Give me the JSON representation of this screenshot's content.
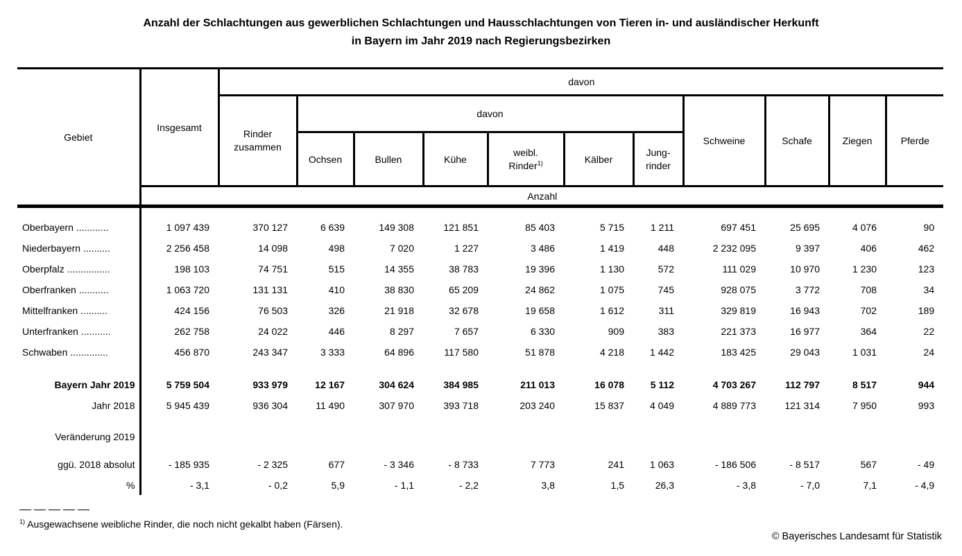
{
  "title": {
    "line1": "Anzahl der Schlachtungen aus gewerblichen Schlachtungen und Hausschlachtungen von Tieren in- und ausländischer Herkunft",
    "line2": "in Bayern im Jahr 2019 nach Regierungsbezirken"
  },
  "table": {
    "header": {
      "gebiet": "Gebiet",
      "insgesamt": "Insgesamt",
      "davon1": "davon",
      "davon2": "davon",
      "rinder1": "Rinder",
      "rinder2": "zusammen",
      "ochsen": "Ochsen",
      "bullen": "Bullen",
      "kuehe": "Kühe",
      "weibl1": "weibl.",
      "weibl2": "Rinder",
      "weibl_sup": "1)",
      "kaelber": "Kälber",
      "jung1": "Jung-",
      "jung2": "rinder",
      "schweine": "Schweine",
      "schafe": "Schafe",
      "ziegen": "Ziegen",
      "pferde": "Pferde",
      "anzahl": "Anzahl"
    },
    "rows": [
      {
        "cls": "first",
        "label": "Oberbayern ............",
        "values": [
          "1 097 439",
          "370 127",
          "6 639",
          "149 308",
          "121 851",
          "85 403",
          "5 715",
          "1 211",
          "697 451",
          "25 695",
          "4 076",
          "90"
        ]
      },
      {
        "cls": "",
        "label": "Niederbayern ..........",
        "values": [
          "2 256 458",
          "14 098",
          "498",
          "7 020",
          "1 227",
          "3 486",
          "1 419",
          "448",
          "2 232 095",
          "9 397",
          "406",
          "462"
        ]
      },
      {
        "cls": "",
        "label": "Oberpfalz ................",
        "values": [
          "198 103",
          "74 751",
          "515",
          "14 355",
          "38 783",
          "19 396",
          "1 130",
          "572",
          "111 029",
          "10 970",
          "1 230",
          "123"
        ]
      },
      {
        "cls": "",
        "label": "Oberfranken ...........",
        "values": [
          "1 063 720",
          "131 131",
          "410",
          "38 830",
          "65 209",
          "24 862",
          "1 075",
          "745",
          "928 075",
          "3 772",
          "708",
          "34"
        ]
      },
      {
        "cls": "",
        "label": "Mittelfranken ..........",
        "values": [
          "424 156",
          "76 503",
          "326",
          "21 918",
          "32 678",
          "19 658",
          "1 612",
          "311",
          "329 819",
          "16 943",
          "702",
          "189"
        ]
      },
      {
        "cls": "",
        "label": "Unterfranken ...........",
        "values": [
          "262 758",
          "24 022",
          "446",
          "8 297",
          "7 657",
          "6 330",
          "909",
          "383",
          "221 373",
          "16 977",
          "364",
          "22"
        ]
      },
      {
        "cls": "",
        "label": "Schwaben ..............",
        "values": [
          "456 870",
          "243 347",
          "3 333",
          "64 896",
          "117 580",
          "51 878",
          "4 218",
          "1 442",
          "183 425",
          "29 043",
          "1 031",
          "24"
        ]
      },
      {
        "cls": "total",
        "label": "Bayern Jahr 2019",
        "label_align": "right",
        "values": [
          "5 759 504",
          "933 979",
          "12 167",
          "304 624",
          "384 985",
          "211 013",
          "16 078",
          "5 112",
          "4 703 267",
          "112 797",
          "8 517",
          "944"
        ]
      },
      {
        "cls": "",
        "label": "Jahr 2018",
        "label_align": "right",
        "values": [
          "5 945 439",
          "936 304",
          "11 490",
          "307 970",
          "393 718",
          "203 240",
          "15 837",
          "4 049",
          "4 889 773",
          "121 314",
          "7 950",
          "993"
        ]
      },
      {
        "cls": "vhead",
        "label": "Veränderung 2019",
        "label_align": "right",
        "values": [
          "",
          "",
          "",
          "",
          "",
          "",
          "",
          "",
          "",
          "",
          "",
          ""
        ]
      },
      {
        "cls": "cabs",
        "label": "ggü. 2018 absolut",
        "label_align": "right",
        "values": [
          "- 185 935",
          "- 2 325",
          "677",
          "- 3 346",
          "- 8 733",
          "7 773",
          "241",
          "1 063",
          "- 186 506",
          "- 8 517",
          "567",
          "- 49"
        ]
      },
      {
        "cls": "",
        "label": "%",
        "label_align": "right",
        "values": [
          "- 3,1",
          "- 0,2",
          "5,9",
          "- 1,1",
          "- 2,2",
          "3,8",
          "1,5",
          "26,3",
          "- 3,8",
          "- 7,0",
          "7,1",
          "- 4,9"
        ]
      }
    ]
  },
  "footnote": {
    "marker": "1)",
    "text": "Ausgewachsene weibliche Rinder, die noch nicht gekalbt haben (Färsen)."
  },
  "copyright": "© Bayerisches Landesamt für Statistik"
}
